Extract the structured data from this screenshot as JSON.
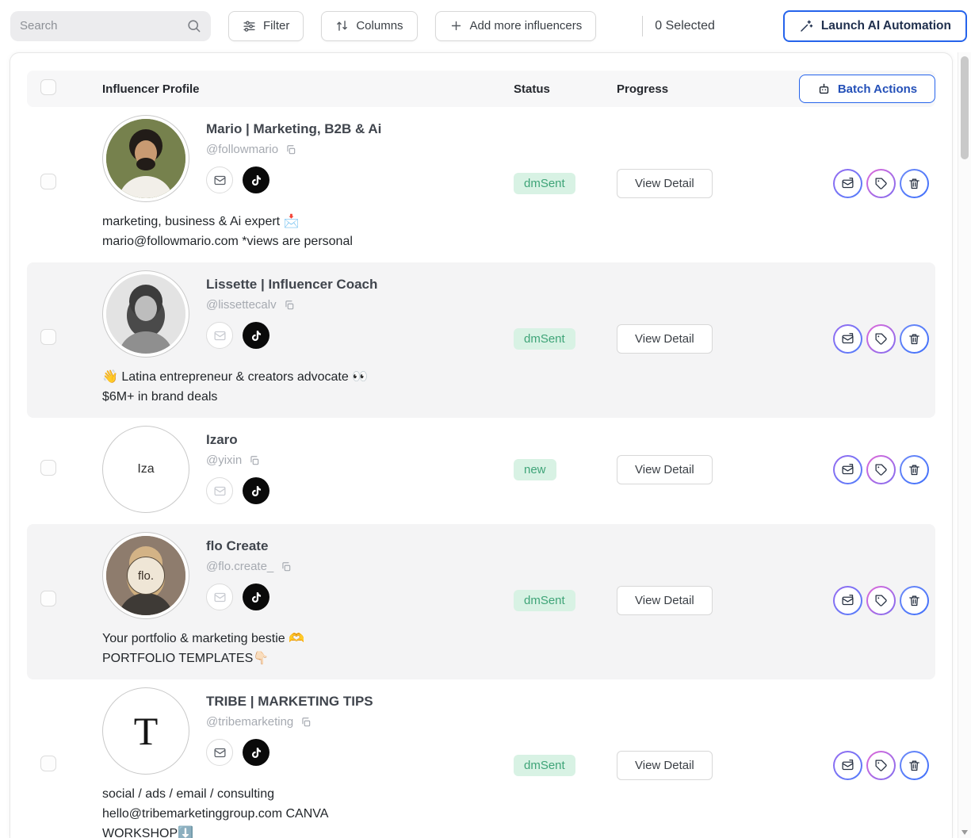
{
  "accent_colors": {
    "blue": "#2563eb",
    "status_green_bg": "#d8f2e4",
    "status_green_text": "#3fa478"
  },
  "icons": {
    "search": "magnifying-glass",
    "filter": "sliders",
    "columns": "swap-vertical-arrows",
    "add": "plus",
    "launch": "magic-wand",
    "batch_actions": "robot",
    "copy": "copy",
    "email": "envelope",
    "tiktok": "tiktok-note",
    "action_dm": "send-message-envelope",
    "action_tag": "tag",
    "action_delete": "trash"
  },
  "toolbar": {
    "search_placeholder": "Search",
    "filter_label": "Filter",
    "columns_label": "Columns",
    "add_influencers_label": "Add more influencers",
    "selected_text": "0 Selected",
    "launch_ai_label": "Launch AI Automation"
  },
  "table": {
    "headers": {
      "profile": "Influencer Profile",
      "status": "Status",
      "progress": "Progress"
    },
    "batch_actions_label": "Batch Actions",
    "view_detail_label": "View Detail",
    "rows": [
      {
        "name": "Mario | Marketing, B2B & Ai",
        "handle": "@followmario",
        "status": "dmSent",
        "email_active": true,
        "bio": [
          "marketing, business & Ai expert 📩",
          "mario@followmario.com *views are personal"
        ],
        "avatar": {
          "kind": "person",
          "bg": "#76814d",
          "hair": "#221c18",
          "skin": "#c89a72",
          "shirt": "#f2efe9",
          "beard": "#221c18"
        }
      },
      {
        "name": "Lissette | Influencer Coach",
        "handle": "@lissettecalv",
        "status": "dmSent",
        "email_active": false,
        "bio": [
          "👋 Latina entrepreneur & creators advocate 👀",
          "$6M+ in brand deals"
        ],
        "avatar": {
          "kind": "person",
          "bg": "#e3e3e3",
          "hair": "#3c3c3c",
          "skin": "#bdbdbd",
          "shirt": "#8f8f8f",
          "sidehair": "#4a4a4a"
        }
      },
      {
        "name": "Izaro",
        "handle": "@yixin",
        "status": "new",
        "email_active": false,
        "bio": [],
        "avatar": {
          "kind": "text",
          "bg": "#cecccа",
          "label": "Iza",
          "label_color": "#2e2e2e"
        }
      },
      {
        "name": "flo Create",
        "handle": "@flo.create_",
        "status": "dmSent",
        "email_active": false,
        "bio": [
          "Your portfolio & marketing bestie 🫶",
          "PORTFOLIO TEMPLATES👇🏻"
        ],
        "avatar": {
          "kind": "person",
          "bg": "#8e7c6d",
          "hair": "#d3b386",
          "skin": "#dab795",
          "shirt": "#3e3a36",
          "sidehair": "#cfae7e",
          "badge": "flo.",
          "badge_bg": "#efe6d6",
          "badge_color": "#3a2f26"
        }
      },
      {
        "name": "TRIBE | MARKETING TIPS",
        "handle": "@tribemarketing",
        "status": "dmSent",
        "email_active": true,
        "bio": [
          "social / ads / email / consulting",
          "hello@tribemarketinggroup.com CANVA",
          "WORKSHOP⬇️"
        ],
        "avatar": {
          "kind": "text",
          "bg": "#ffffff",
          "label": "T",
          "label_color": "#141414",
          "serif": true
        }
      }
    ]
  }
}
